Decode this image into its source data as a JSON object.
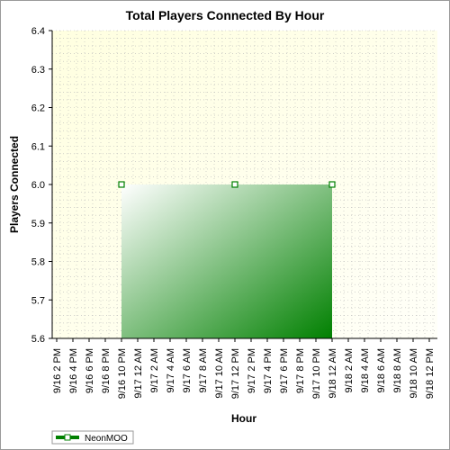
{
  "chart_data": {
    "type": "area",
    "title": "Total Players Connected By Hour",
    "xlabel": "Hour",
    "ylabel": "Players Connected",
    "x_categories": [
      "9/16 2 PM",
      "9/16 4 PM",
      "9/16 6 PM",
      "9/16 8 PM",
      "9/16 10 PM",
      "9/17 12 AM",
      "9/17 2 AM",
      "9/17 4 AM",
      "9/17 6 AM",
      "9/17 8 AM",
      "9/17 10 AM",
      "9/17 12 PM",
      "9/17 2 PM",
      "9/17 4 PM",
      "9/17 6 PM",
      "9/17 8 PM",
      "9/17 10 PM",
      "9/18 12 AM",
      "9/18 2 AM",
      "9/18 4 AM",
      "9/18 6 AM",
      "9/18 8 AM",
      "9/18 10 AM",
      "9/18 12 PM"
    ],
    "ylim": [
      5.6,
      6.4
    ],
    "yticks": [
      "5.6",
      "5.7",
      "5.8",
      "5.9",
      "6.0",
      "6.1",
      "6.2",
      "6.3",
      "6.4"
    ],
    "grid": true,
    "legend_position": "bottom-left",
    "series": [
      {
        "name": "NeonMOO",
        "points": [
          {
            "x": "9/16 10 PM",
            "y": 6.0
          },
          {
            "x": "9/17 12 PM",
            "y": 6.0
          },
          {
            "x": "9/18 12 AM",
            "y": 6.0
          }
        ],
        "color": "#008000"
      }
    ]
  },
  "colors": {
    "plot_background_from": "#ffffe0",
    "plot_background_to": "#fffff8",
    "area_gradient_from": "#ffffff",
    "area_gradient_to": "#008000",
    "grid": "#b8b8b8"
  }
}
